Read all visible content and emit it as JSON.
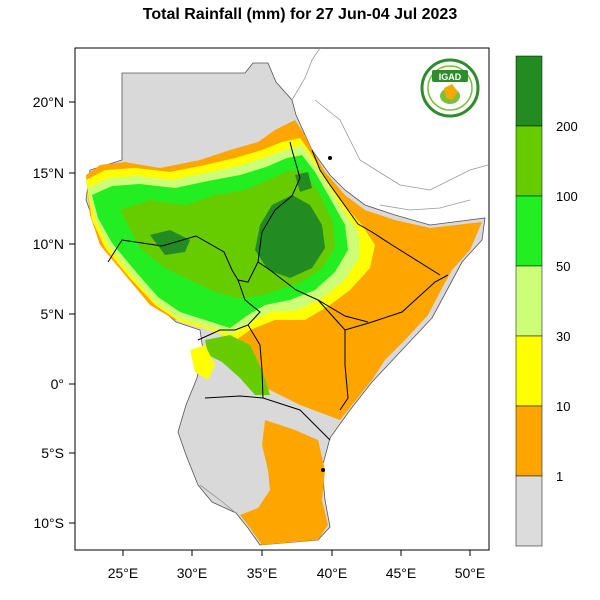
{
  "title": "Total Rainfall (mm) for 27 Jun-04 Jul 2023",
  "logo": {
    "text": "IGAD"
  },
  "axes": {
    "lat_labels": [
      "20°N",
      "15°N",
      "10°N",
      "5°N",
      "0°",
      "5°S",
      "10°S"
    ],
    "lon_labels": [
      "25°E",
      "30°E",
      "35°E",
      "40°E",
      "45°E",
      "50°E"
    ]
  },
  "legend": {
    "labels": [
      "1",
      "10",
      "30",
      "50",
      "100",
      "200"
    ],
    "colors": [
      "#dcdcdc",
      "#ffa500",
      "#ffff00",
      "#ccff77",
      "#22ee22",
      "#66cc00",
      "#228b22"
    ]
  },
  "colors": {
    "no_rain": "#d9d9d9",
    "orange": "#ffa500",
    "yellow": "#ffff00",
    "light_green": "#ccff77",
    "green": "#22ee22",
    "yellow_green": "#66cc00",
    "dark_green": "#228b22"
  }
}
